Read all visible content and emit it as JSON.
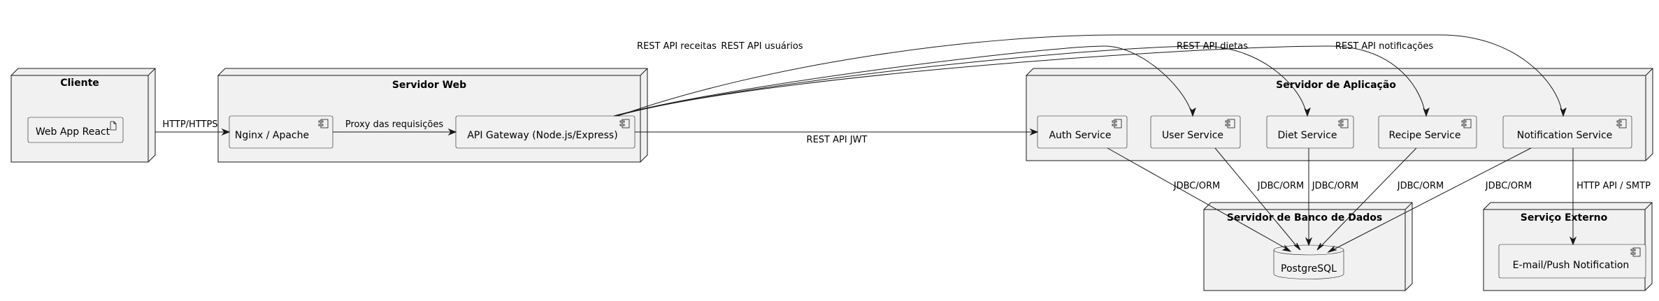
{
  "nodes": {
    "cliente": "Cliente",
    "servidor_web": "Servidor Web",
    "servidor_app": "Servidor de Aplicação",
    "servidor_db": "Servidor de Banco de Dados",
    "servico_externo": "Serviço Externo"
  },
  "components": {
    "web_app": "Web App React",
    "nginx": "Nginx / Apache",
    "api_gateway": "API Gateway (Node.js/Express)",
    "auth": "Auth Service",
    "user": "User Service",
    "diet": "Diet Service",
    "recipe": "Recipe Service",
    "notification": "Notification Service",
    "postgres": "PostgreSQL",
    "email": "E-mail/Push Notification"
  },
  "edges": {
    "http": "HTTP/HTTPS",
    "proxy": "Proxy das requisições",
    "jwt": "REST API JWT",
    "receitas": "REST API receitas",
    "usuarios": "REST API usuários",
    "dietas": "REST API dietas",
    "notificacoes": "REST API notificações",
    "jdbc_auth": "JDBC/ORM",
    "jdbc_user": "JDBC/ORM",
    "jdbc_diet": "JDBC/ORM",
    "jdbc_recipe": "JDBC/ORM",
    "jdbc_notification": "JDBC/ORM",
    "smtp": "HTTP API / SMTP"
  }
}
